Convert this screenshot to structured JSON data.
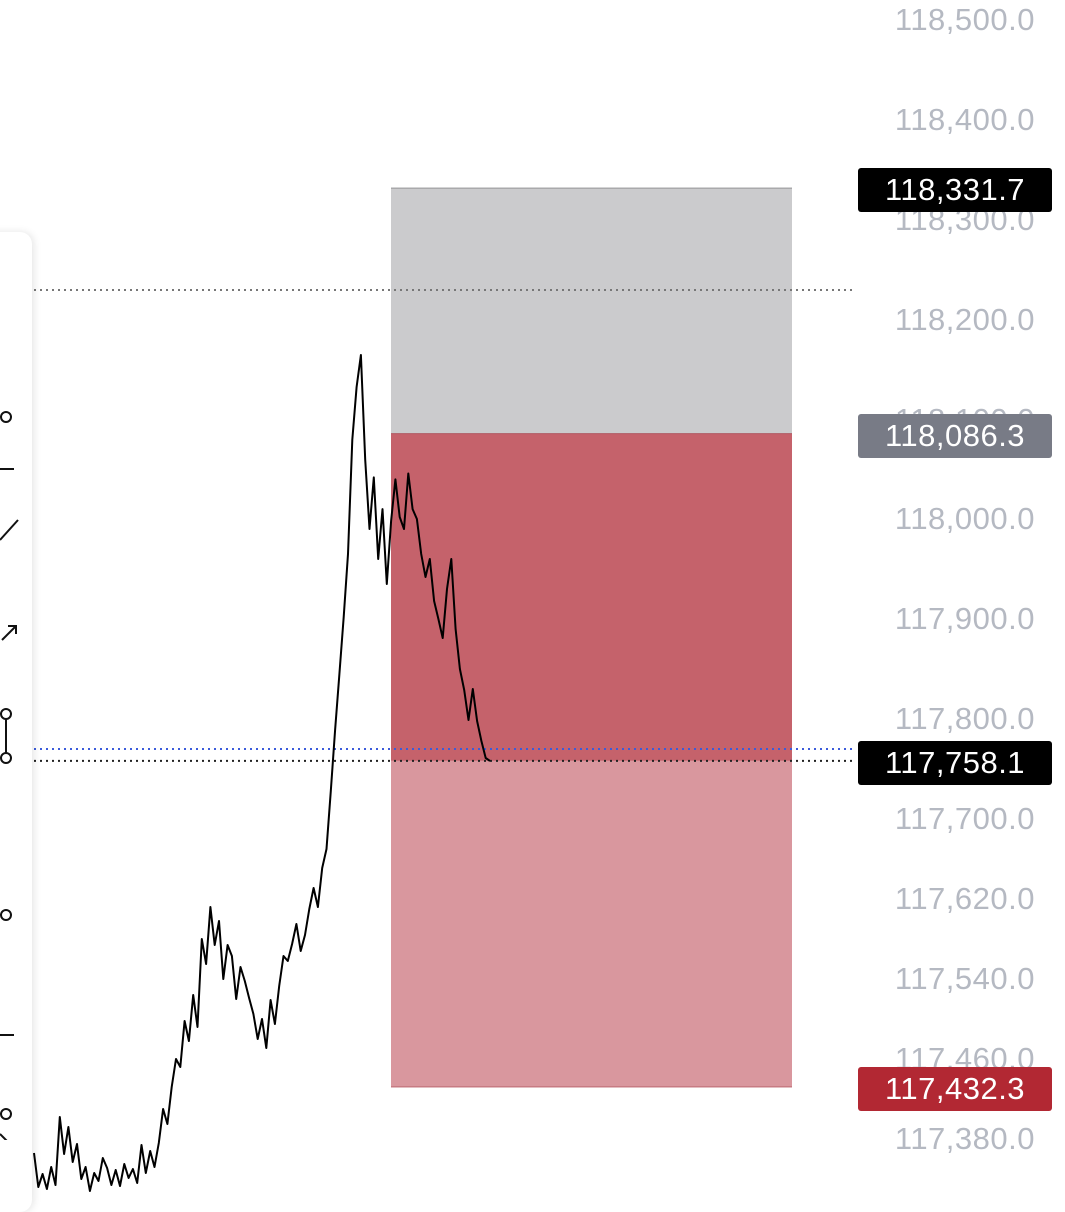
{
  "chart_data": {
    "type": "line",
    "instrument_hint": "",
    "ylim": [
      117340.0,
      118520.0
    ],
    "y_ticks": [
      "118,500.0",
      "118,400.0",
      "118,300.0",
      "118,200.0",
      "118,100.0",
      "118,000.0",
      "117,900.0",
      "117,800.0",
      "117,700.0",
      "117,620.0",
      "117,540.0",
      "117,460.0",
      "117,380.0"
    ],
    "y_tick_values": [
      118500,
      118400,
      118300,
      118200,
      118100,
      118000,
      117900,
      117800,
      117700,
      117620,
      117540,
      117460,
      117380
    ],
    "price_series": [
      117366,
      117332,
      117345,
      117330,
      117352,
      117334,
      117402,
      117365,
      117392,
      117357,
      117375,
      117340,
      117352,
      117328,
      117346,
      117338,
      117361,
      117351,
      117334,
      117349,
      117333,
      117355,
      117341,
      117350,
      117336,
      117374,
      117346,
      117368,
      117352,
      117376,
      117410,
      117395,
      117432,
      117460,
      117452,
      117498,
      117478,
      117524,
      117492,
      117580,
      117555,
      117612,
      117574,
      117598,
      117540,
      117574,
      117563,
      117520,
      117552,
      117538,
      117521,
      117505,
      117480,
      117500,
      117471,
      117519,
      117495,
      117533,
      117563,
      117558,
      117575,
      117595,
      117568,
      117584,
      117610,
      117631,
      117612,
      117651,
      117670,
      117728,
      117789,
      117845,
      117902,
      117965,
      118080,
      118133,
      118165,
      118060,
      117990,
      118042,
      117960,
      118010,
      117935,
      117998,
      118040,
      118002,
      117990,
      118046,
      118010,
      118000,
      117965,
      117942,
      117960,
      117918,
      117900,
      117881,
      117930,
      117960,
      117890,
      117850,
      117829,
      117799,
      117830,
      117798,
      117778,
      117761,
      117758
    ],
    "positions": [
      {
        "type": "short",
        "entry": 118086.3,
        "stop": 118331.7,
        "target": 117432.3
      }
    ],
    "horizontal_lines": [
      118230.0,
      117770.0,
      117758.1
    ],
    "price_tags": {
      "stop_label": "118,331.7",
      "entry_label": "118,086.3",
      "current_label": "117,758.1",
      "target_label": "117,432.3"
    },
    "colors": {
      "stop_zone": "#cbcbcd",
      "loss_zone_dark": "#c5626b",
      "loss_zone_light": "#d9979e",
      "tag_black": "#000000",
      "tag_grey": "#787b86",
      "tag_red": "#b22833",
      "axis_text": "#b5b9c2",
      "line": "#000000",
      "blue_dotted": "#3b5bdb"
    }
  },
  "toolbar": {
    "tools": [
      "trend-line-icon",
      "node-icon",
      "horizontal-ray-icon",
      "ray-icon",
      "arrow-icon",
      "measure-icon",
      "node-icon",
      "horizontal-line-icon",
      "ray-icon"
    ]
  }
}
